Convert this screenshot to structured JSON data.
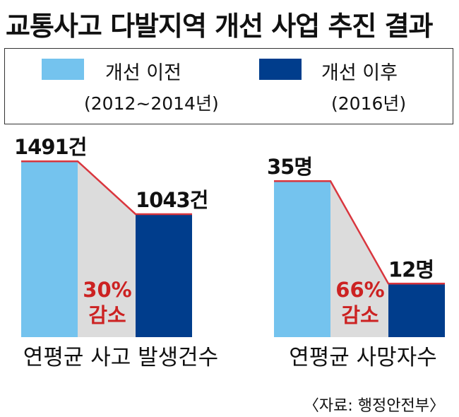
{
  "title": "교통사고 다발지역 개선 사업 추진 결과",
  "legend": {
    "before": {
      "label": "개선 이전",
      "sub": "(2012~2014년)",
      "color": "#74c3ee"
    },
    "after": {
      "label": "개선 이후",
      "sub": "(2016년)",
      "color": "#003d8c"
    }
  },
  "colors": {
    "line": "#d9363e",
    "fill": "#dcdcdc",
    "percent": "#cc2222"
  },
  "source": "〈자료: 행정안전부〉",
  "chart_data": [
    {
      "type": "bar",
      "xlabel": "연평균 사고 발생건수",
      "categories": [
        "개선 이전",
        "개선 이후"
      ],
      "values": [
        1491,
        1043
      ],
      "labels": [
        "1491건",
        "1043건"
      ],
      "ylim": [
        0,
        1720
      ],
      "annotation": {
        "percent": "30%",
        "text": "감소"
      }
    },
    {
      "type": "bar",
      "xlabel": "연평균 사망자수",
      "categories": [
        "개선 이전",
        "개선 이후"
      ],
      "values": [
        35,
        12
      ],
      "labels": [
        "35명",
        "12명"
      ],
      "ylim": [
        0,
        45.5
      ],
      "annotation": {
        "percent": "66%",
        "text": "감소"
      }
    }
  ]
}
